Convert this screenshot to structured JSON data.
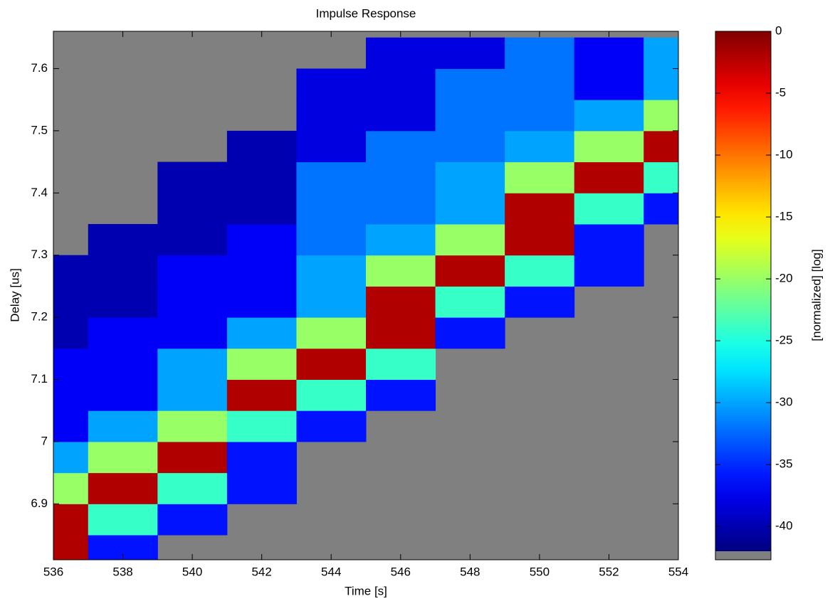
{
  "chart_data": {
    "type": "heatmap",
    "title": "Impulse Response",
    "xlabel": "Time [s]",
    "ylabel": "Delay [us]",
    "colormap": "jet",
    "background": "#808080",
    "x": [
      536,
      538,
      540,
      542,
      544,
      546,
      548,
      550,
      552,
      554
    ],
    "y": [
      6.825,
      6.875,
      6.925,
      6.975,
      7.025,
      7.075,
      7.125,
      7.175,
      7.225,
      7.275,
      7.325,
      7.375,
      7.425,
      7.475,
      7.525,
      7.575,
      7.625
    ],
    "z": [
      [
        -2,
        -36,
        null,
        null,
        null,
        null,
        null,
        null,
        null,
        null
      ],
      [
        -2,
        -24,
        -36,
        null,
        null,
        null,
        null,
        null,
        null,
        null
      ],
      [
        -20,
        -2,
        -24,
        -36,
        null,
        null,
        null,
        null,
        null,
        null
      ],
      [
        -30,
        -20,
        -2,
        -36,
        null,
        null,
        null,
        null,
        null,
        null
      ],
      [
        -37,
        -30,
        -20,
        -24,
        -36,
        null,
        null,
        null,
        null,
        null
      ],
      [
        -37,
        -37,
        -30,
        -2,
        -24,
        -36,
        null,
        null,
        null,
        null
      ],
      [
        -37,
        -37,
        -30,
        -20,
        -2,
        -24,
        null,
        null,
        null,
        null
      ],
      [
        -40,
        -37,
        -37,
        -30,
        -20,
        -2,
        -36,
        null,
        null,
        null
      ],
      [
        -40,
        -40,
        -37,
        -37,
        -30,
        -2,
        -24,
        -36,
        null,
        null
      ],
      [
        -40,
        -40,
        -37,
        -37,
        -30,
        -20,
        -2,
        -24,
        -36,
        null
      ],
      [
        null,
        -40,
        -40,
        -37,
        -32,
        -30,
        -20,
        -2,
        -36,
        null
      ],
      [
        null,
        null,
        -40,
        -40,
        -32,
        -32,
        -30,
        -2,
        -24,
        -36
      ],
      [
        null,
        null,
        -40,
        -40,
        -32,
        -32,
        -30,
        -20,
        -2,
        -24
      ],
      [
        null,
        null,
        null,
        -40,
        -38,
        -32,
        -32,
        -30,
        -20,
        -2
      ],
      [
        null,
        null,
        null,
        null,
        -38,
        -38,
        -32,
        -32,
        -30,
        -20
      ],
      [
        null,
        null,
        null,
        null,
        -38,
        -38,
        -32,
        -32,
        -37,
        -30
      ],
      [
        null,
        null,
        null,
        null,
        null,
        -38,
        -38,
        -32,
        -37,
        -30
      ]
    ],
    "xlim": [
      536,
      554
    ],
    "xticks": [
      536,
      538,
      540,
      542,
      544,
      546,
      548,
      550,
      552,
      554
    ],
    "ylim": [
      6.81,
      7.66
    ],
    "yticks": [
      6.9,
      7,
      7.1,
      7.2,
      7.3,
      7.4,
      7.5,
      7.6
    ],
    "colorbar": {
      "label": "[normalized] [log]",
      "lim": [
        -42,
        0
      ],
      "ticks": [
        0,
        -5,
        -10,
        -15,
        -20,
        -25,
        -30,
        -35,
        -40
      ]
    }
  }
}
